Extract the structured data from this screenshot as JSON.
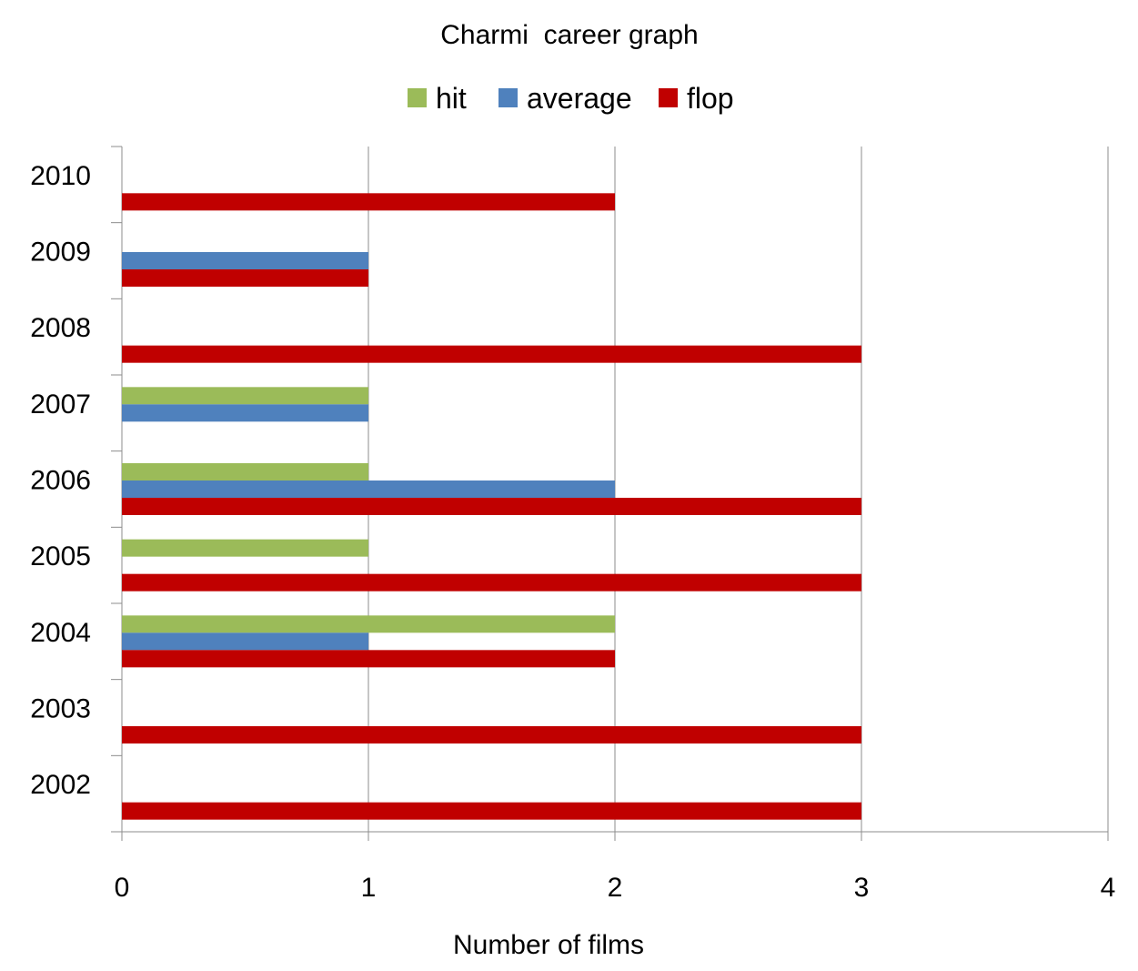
{
  "chart_data": {
    "type": "bar",
    "orientation": "horizontal",
    "title": "Charmi  career graph",
    "xlabel": "Number of films",
    "ylabel": "",
    "categories": [
      "2002",
      "2003",
      "2004",
      "2005",
      "2006",
      "2007",
      "2008",
      "2009",
      "2010"
    ],
    "series": [
      {
        "name": "hit",
        "color": "#9BBB59",
        "values": [
          0,
          0,
          2,
          1,
          1,
          1,
          0,
          0,
          0
        ]
      },
      {
        "name": "average",
        "color": "#4F81BD",
        "values": [
          0,
          0,
          1,
          0,
          2,
          1,
          0,
          1,
          0
        ]
      },
      {
        "name": "flop",
        "color": "#C00000",
        "values": [
          3,
          3,
          2,
          3,
          3,
          0,
          3,
          1,
          2
        ]
      }
    ],
    "xlim": [
      0,
      4
    ],
    "x_ticks": [
      "0",
      "1",
      "2",
      "3",
      "4"
    ],
    "grid": "vertical-major",
    "legend_position": "top"
  }
}
